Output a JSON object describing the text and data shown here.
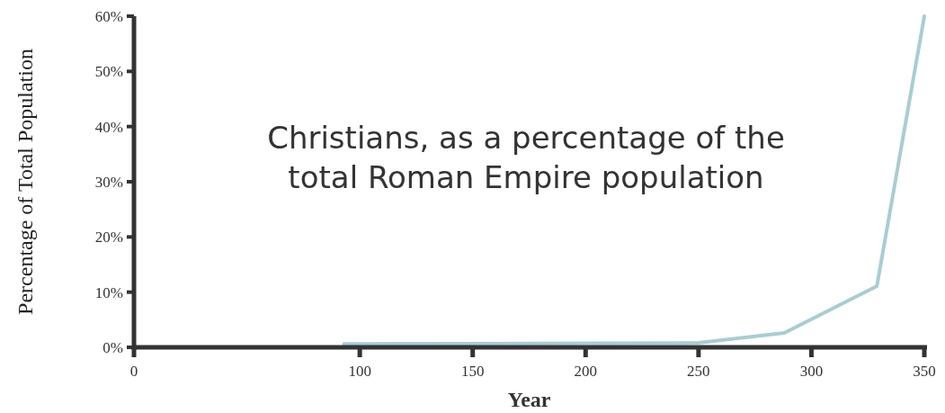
{
  "chart_data": {
    "type": "line",
    "title": "Christians, as a percentage of the total Roman Empire population",
    "xlabel": "Year",
    "ylabel": "Percentage of Total Population",
    "x": [
      93,
      250,
      288,
      329,
      350
    ],
    "series": [
      {
        "color": "#a8cdd3",
        "values": [
          0.6,
          0.8,
          2.6,
          11.1,
          60
        ]
      }
    ],
    "xlim": [
      0,
      350
    ],
    "xticks": [
      0,
      100,
      150,
      200,
      250,
      300,
      350
    ],
    "ylim": [
      0,
      60
    ],
    "yticks": [
      {
        "value": 0,
        "label": "0%"
      },
      {
        "value": 10,
        "label": "10%"
      },
      {
        "value": 20,
        "label": "20%"
      },
      {
        "value": 30,
        "label": "30%"
      },
      {
        "value": 40,
        "label": "40%"
      },
      {
        "value": 50,
        "label": "50%"
      },
      {
        "value": 60,
        "label": "60%"
      }
    ],
    "grid": false,
    "marker": "none",
    "line_style": "solid"
  }
}
